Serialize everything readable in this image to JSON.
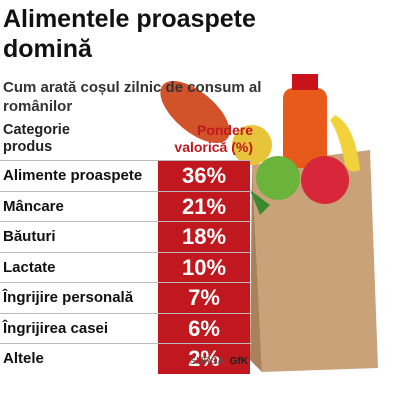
{
  "header": {
    "title": "Alimentele proaspete domină",
    "subtitle": "Cum arată coșul zilnic de consum al românilor"
  },
  "table": {
    "columns": [
      "Categorie produs",
      "Pondere valorică (%)"
    ],
    "rows": [
      [
        "Alimente proaspete",
        "36%"
      ],
      [
        "Mâncare",
        "21%"
      ],
      [
        "Băuturi",
        "18%"
      ],
      [
        "Lactate",
        "10%"
      ],
      [
        "Îngrijire personală",
        "7%"
      ],
      [
        "Îngrijirea casei",
        "6%"
      ],
      [
        "Altele",
        "2%"
      ]
    ]
  },
  "source": {
    "label": "SURSA:",
    "name": "GfK"
  }
}
